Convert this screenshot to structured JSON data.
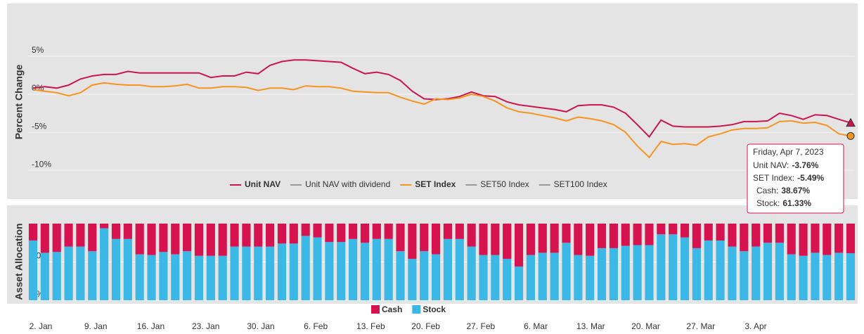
{
  "chart_data": [
    {
      "type": "line",
      "y_label": "Percent Change",
      "ylim": [
        -11,
        11
      ],
      "yticks": [
        {
          "value": -10,
          "label": "-10%"
        },
        {
          "value": -5,
          "label": "-5%"
        },
        {
          "value": 0,
          "label": "0%"
        },
        {
          "value": 5,
          "label": "5%"
        }
      ],
      "grid": true,
      "series": [
        {
          "name": "Unit NAV",
          "color": "#c8164f",
          "marker": "triangle",
          "values": [
            0.8,
            1.0,
            0.8,
            1.2,
            2.0,
            2.4,
            2.6,
            2.6,
            3.0,
            2.8,
            2.8,
            2.8,
            2.8,
            2.8,
            2.8,
            2.2,
            2.4,
            2.4,
            2.9,
            2.7,
            3.8,
            4.3,
            4.5,
            4.5,
            4.4,
            4.3,
            4.2,
            3.4,
            2.7,
            2.9,
            2.6,
            1.8,
            0.4,
            -0.6,
            -0.7,
            -0.6,
            -0.3,
            0.3,
            -0.2,
            -0.3,
            -1.0,
            -1.4,
            -1.6,
            -1.8,
            -2.0,
            -2.3,
            -1.5,
            -1.4,
            -1.4,
            -1.7,
            -2.5,
            -4.0,
            -5.6,
            -3.4,
            -4.2,
            -4.3,
            -4.3,
            -4.3,
            -4.2,
            -4.0,
            -3.6,
            -3.6,
            -3.5,
            -2.5,
            -2.8,
            -3.3,
            -2.7,
            -2.8,
            -3.3,
            -3.76
          ]
        },
        {
          "name": "Unit NAV with dividend",
          "color": "#999999"
        },
        {
          "name": "SET Index",
          "color": "#f7941d",
          "marker": "circle",
          "values": [
            0.6,
            0.4,
            0.2,
            -0.2,
            0.2,
            1.2,
            1.5,
            1.3,
            1.2,
            1.2,
            1.0,
            1.0,
            1.1,
            1.3,
            0.8,
            0.8,
            1.0,
            1.0,
            0.9,
            0.5,
            0.8,
            0.8,
            0.6,
            1.1,
            1.0,
            1.0,
            0.8,
            0.4,
            0.3,
            0.2,
            0.2,
            -0.4,
            -0.9,
            -1.3,
            -0.6,
            -0.7,
            -0.5,
            0.0,
            -0.3,
            -0.9,
            -1.8,
            -2.3,
            -2.5,
            -2.8,
            -3.1,
            -3.5,
            -3.0,
            -3.2,
            -3.5,
            -4.0,
            -5.0,
            -6.8,
            -8.3,
            -6.2,
            -6.6,
            -6.5,
            -6.7,
            -5.6,
            -5.2,
            -4.7,
            -4.5,
            -4.5,
            -4.4,
            -3.6,
            -3.5,
            -3.8,
            -3.7,
            -4.1,
            -5.2,
            -5.49
          ]
        },
        {
          "name": "SET50 Index",
          "color": "#999999"
        },
        {
          "name": "SET100 Index",
          "color": "#999999"
        }
      ],
      "tooltip": {
        "title": "Friday, Apr 7, 2023",
        "rows": [
          {
            "label": "Unit NAV:",
            "value": "-3.76%",
            "color": "#c8164f"
          },
          {
            "label": "SET Index:",
            "value": "-5.49%",
            "color": "#f7941d"
          },
          {
            "label": "Cash:",
            "value": "38.67%",
            "color": "#d6124f"
          },
          {
            "label": "Stock:",
            "value": "61.33%",
            "color": "#2fa8dc"
          }
        ]
      }
    },
    {
      "type": "bar",
      "stacked": true,
      "y_label": "Asset Allocation",
      "ylim": [
        0,
        100
      ],
      "yticks": [
        {
          "value": 0,
          "label": "0%"
        },
        {
          "value": 50,
          "label": "50%"
        }
      ],
      "grid": true,
      "categories": [
        "2. Jan",
        null,
        null,
        null,
        null,
        "9. Jan",
        null,
        null,
        null,
        null,
        "16. Jan",
        null,
        null,
        null,
        null,
        "23. Jan",
        null,
        null,
        null,
        null,
        "30. Jan",
        null,
        null,
        null,
        null,
        "6. Feb",
        null,
        null,
        null,
        null,
        "13. Feb",
        null,
        null,
        null,
        null,
        "20. Feb",
        null,
        null,
        null,
        null,
        "27. Feb",
        null,
        null,
        null,
        null,
        "6. Mar",
        null,
        null,
        null,
        null,
        "13. Mar",
        null,
        null,
        null,
        null,
        "20. Mar",
        null,
        null,
        null,
        null,
        "27. Mar",
        null,
        null,
        null,
        null,
        "3. Apr",
        null,
        null,
        null,
        null
      ],
      "series": [
        {
          "name": "Cash",
          "color": "#d6124f",
          "values": [
            22,
            38,
            37,
            30,
            30,
            36,
            6,
            20,
            20,
            40,
            41,
            37,
            40,
            36,
            42,
            42,
            42,
            30,
            30,
            30,
            30,
            26,
            26,
            16,
            18,
            24,
            24,
            20,
            25,
            20,
            20,
            36,
            46,
            36,
            40,
            20,
            20,
            30,
            41,
            41,
            46,
            56,
            41,
            38,
            38,
            25,
            41,
            42,
            32,
            32,
            29,
            28,
            28,
            14,
            14,
            18,
            32,
            22,
            22,
            30,
            36,
            30,
            25,
            25,
            40,
            42,
            38,
            41,
            38,
            38.67
          ]
        },
        {
          "name": "Stock",
          "color": "#3bb8e6",
          "values": [
            78,
            62,
            63,
            70,
            70,
            64,
            94,
            80,
            80,
            60,
            59,
            63,
            60,
            64,
            58,
            58,
            58,
            70,
            70,
            70,
            70,
            74,
            74,
            84,
            82,
            76,
            76,
            80,
            75,
            80,
            80,
            64,
            54,
            64,
            60,
            80,
            80,
            70,
            59,
            59,
            54,
            44,
            59,
            62,
            62,
            75,
            59,
            58,
            68,
            68,
            71,
            72,
            72,
            86,
            86,
            82,
            68,
            78,
            78,
            70,
            64,
            70,
            75,
            75,
            60,
            58,
            62,
            59,
            62,
            61.33
          ]
        }
      ]
    }
  ]
}
